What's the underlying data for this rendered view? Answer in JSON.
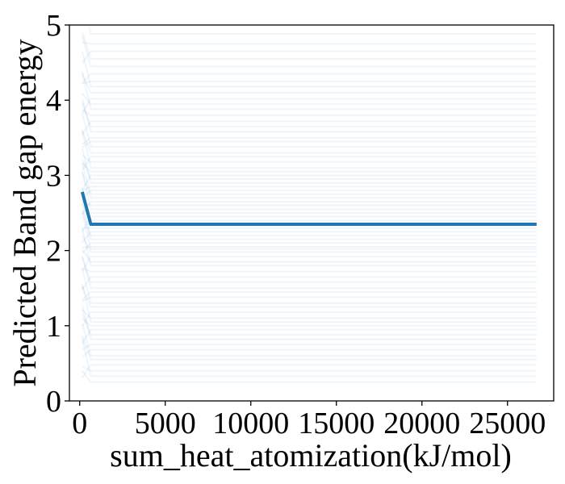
{
  "chart_data": {
    "type": "line",
    "title": "",
    "xlabel": "sum_heat_atomization(kJ/mol)",
    "ylabel": "Predicted Band gap energy",
    "xlim": [
      -600,
      27700
    ],
    "ylim": [
      0,
      5
    ],
    "x_ticks": [
      0,
      5000,
      10000,
      15000,
      20000,
      25000
    ],
    "x_tick_labels": [
      "0",
      "5000",
      "10000",
      "15000",
      "20000",
      "25000"
    ],
    "y_ticks": [
      0,
      1,
      2,
      3,
      4,
      5
    ],
    "y_tick_labels": [
      "0",
      "1",
      "2",
      "3",
      "4",
      "5"
    ],
    "grid": false,
    "legend": "none",
    "colors": {
      "average": "#1f77b4",
      "ice": "#1f77b4",
      "axis": "#000000"
    },
    "series": [
      {
        "x": [
          150,
          650,
          1000,
          5000,
          10000,
          15000,
          20000,
          26700
        ],
        "y": [
          2.78,
          2.35,
          2.35,
          2.35,
          2.35,
          2.35,
          2.35,
          2.35
        ]
      }
    ],
    "ice_curves": {
      "x_start": 150,
      "x_knee": 650,
      "x_end": 26700,
      "end_values": [
        0.25,
        0.33,
        0.4,
        0.48,
        0.55,
        0.6,
        0.68,
        0.75,
        0.82,
        0.88,
        0.95,
        1.0,
        1.05,
        1.1,
        1.18,
        1.25,
        1.3,
        1.38,
        1.45,
        1.5,
        1.58,
        1.65,
        1.72,
        1.8,
        1.85,
        1.92,
        1.98,
        2.02,
        2.05,
        2.1,
        2.15,
        2.2,
        2.25,
        2.3,
        2.35,
        2.4,
        2.45,
        2.5,
        2.55,
        2.6,
        2.65,
        2.7,
        2.75,
        2.8,
        2.85,
        2.9,
        2.95,
        3.0,
        3.05,
        3.1,
        3.18,
        3.25,
        3.3,
        3.38,
        3.45,
        3.5,
        3.58,
        3.65,
        3.72,
        3.8,
        3.88,
        3.95,
        4.02,
        4.1,
        4.18,
        4.25,
        4.35,
        4.45,
        4.55,
        4.65,
        4.75,
        4.88
      ]
    }
  }
}
